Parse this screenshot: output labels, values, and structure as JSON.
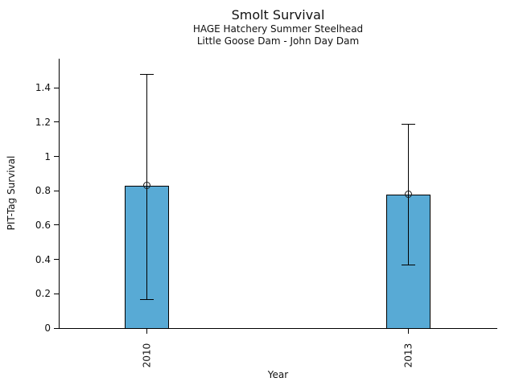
{
  "title": "Smolt Survival",
  "colors": {
    "bar_fill": "#58AAD5",
    "bar_edge": "#000000",
    "error_bar": "#000000",
    "background": "#FFFFFF",
    "text": "#111111"
  },
  "chart_data": {
    "type": "bar",
    "title": "Smolt Survival",
    "subtitles": [
      "HAGE Hatchery Summer Steelhead",
      "Little Goose Dam - John Day Dam"
    ],
    "xlabel": "Year",
    "ylabel": "PIT-Tag Survival",
    "categories": [
      "2010",
      "2013"
    ],
    "values": [
      0.83,
      0.78
    ],
    "error_low": [
      0.17,
      0.37
    ],
    "error_high": [
      1.48,
      1.19
    ],
    "marker": "open-circle-at-bar-top",
    "yticks": [
      0,
      0.2,
      0.4,
      0.6,
      0.8,
      1,
      1.2,
      1.4
    ],
    "ytick_labels": [
      "0",
      "0.2",
      "0.4",
      "0.6",
      "0.8",
      "1",
      "1.2",
      "1.4"
    ],
    "ylim": [
      0,
      1.57
    ],
    "grid": false,
    "legend": "none",
    "bar_color": "#58AAD5"
  }
}
